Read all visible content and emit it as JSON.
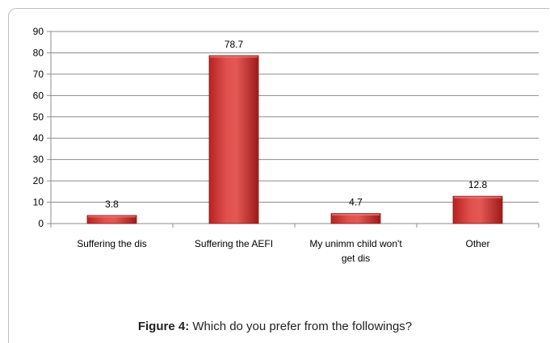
{
  "caption": {
    "label": "Figure 4:",
    "text": "Which do you prefer from the followings?"
  },
  "chart_data": {
    "type": "bar",
    "title": "",
    "xlabel": "",
    "ylabel": "",
    "ylim": [
      0,
      90
    ],
    "yticks": [
      0,
      10,
      20,
      30,
      40,
      50,
      60,
      70,
      80,
      90
    ],
    "grid": true,
    "legend": "none",
    "categories": [
      [
        "Suffering the dis"
      ],
      [
        "Suffering the AEFI"
      ],
      [
        "My unimm child won't",
        "get dis"
      ],
      [
        "Other"
      ]
    ],
    "values": [
      3.8,
      78.7,
      4.7,
      12.8
    ],
    "data_labels": [
      "3.8",
      "78.7",
      "4.7",
      "12.8"
    ],
    "colors": {
      "bar_light": "#e3514f",
      "bar_dark": "#b21f1d",
      "bar_edge": "#8c1a19",
      "grid": "#8c8c8c",
      "text": "#000000"
    }
  }
}
